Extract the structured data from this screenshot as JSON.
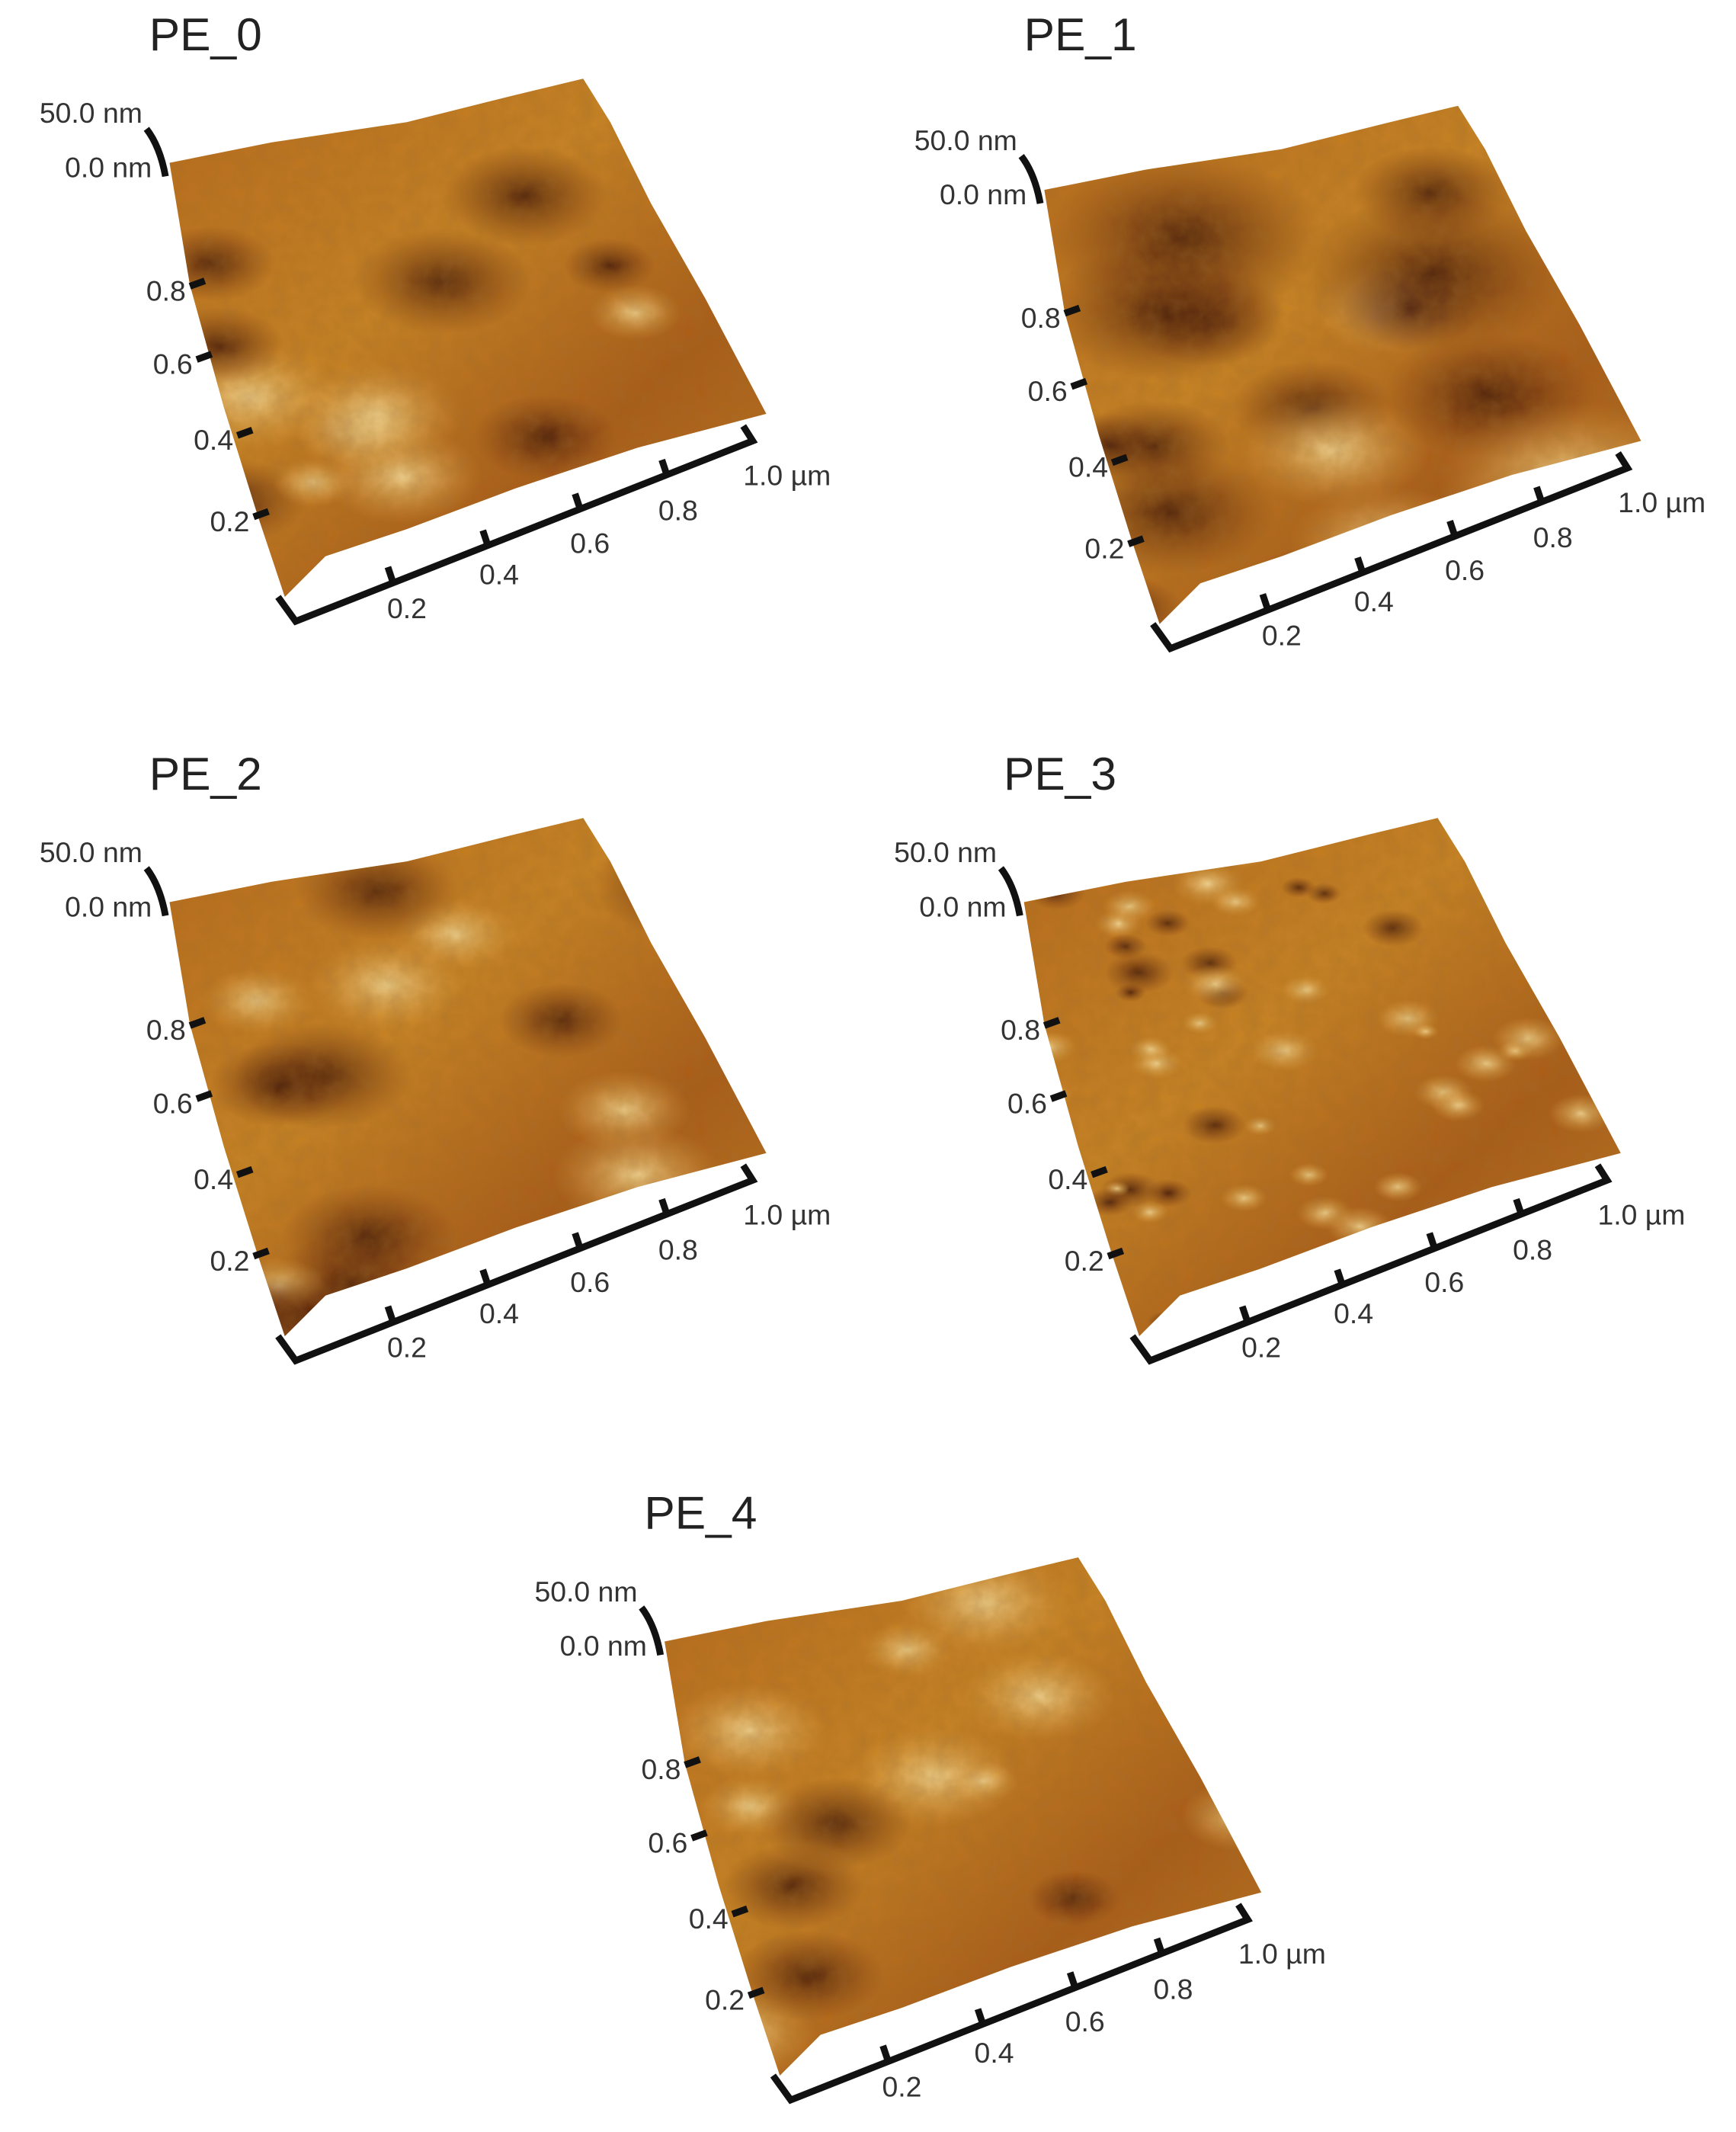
{
  "panels": [
    {
      "title": "PE_0",
      "z_labels": [
        "50.0 nm",
        "0.0 nm"
      ],
      "y_ticks": [
        "0.2",
        "0.4",
        "0.6",
        "0.8"
      ],
      "x_ticks": [
        "0.2",
        "0.4",
        "0.6",
        "0.8",
        "1.0 µm"
      ]
    },
    {
      "title": "PE_1",
      "z_labels": [
        "50.0 nm",
        "0.0 nm"
      ],
      "y_ticks": [
        "0.2",
        "0.4",
        "0.6",
        "0.8"
      ],
      "x_ticks": [
        "0.2",
        "0.4",
        "0.6",
        "0.8",
        "1.0 µm"
      ]
    },
    {
      "title": "PE_2",
      "z_labels": [
        "50.0 nm",
        "0.0 nm"
      ],
      "y_ticks": [
        "0.2",
        "0.4",
        "0.6",
        "0.8"
      ],
      "x_ticks": [
        "0.2",
        "0.4",
        "0.6",
        "0.8",
        "1.0 µm"
      ]
    },
    {
      "title": "PE_3",
      "z_labels": [
        "50.0 nm",
        "0.0 nm"
      ],
      "y_ticks": [
        "0.2",
        "0.4",
        "0.6",
        "0.8"
      ],
      "x_ticks": [
        "0.2",
        "0.4",
        "0.6",
        "0.8",
        "1.0 µm"
      ]
    },
    {
      "title": "PE_4",
      "z_labels": [
        "50.0 nm",
        "0.0 nm"
      ],
      "y_ticks": [
        "0.2",
        "0.4",
        "0.6",
        "0.8"
      ],
      "x_ticks": [
        "0.2",
        "0.4",
        "0.6",
        "0.8",
        "1.0 µm"
      ]
    }
  ]
}
